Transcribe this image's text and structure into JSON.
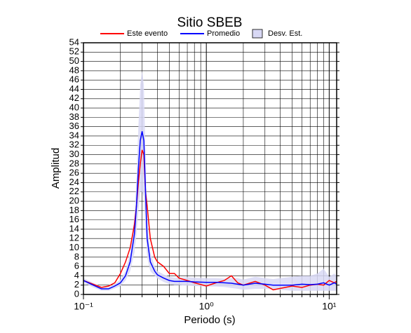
{
  "chart_data": {
    "type": "line",
    "title": "Sitio SBEB",
    "x_label": "Periodo (s)",
    "y_label": "Amplitud",
    "xscale": "log",
    "xlim": [
      0.1,
      11.5
    ],
    "ylim": [
      0,
      54
    ],
    "xticks": [
      {
        "value": 0.1,
        "label": "10⁻¹"
      },
      {
        "value": 1,
        "label": "10⁰"
      },
      {
        "value": 10,
        "label": "10¹"
      }
    ],
    "xminorticks": [
      0.2,
      0.3,
      0.4,
      0.5,
      0.6,
      0.7,
      0.8,
      0.9,
      2,
      3,
      4,
      5,
      6,
      7,
      8,
      9
    ],
    "yticks": [
      0,
      2,
      4,
      6,
      8,
      10,
      12,
      14,
      16,
      18,
      20,
      22,
      24,
      26,
      28,
      30,
      32,
      34,
      36,
      38,
      40,
      42,
      44,
      46,
      48,
      50,
      52,
      54
    ],
    "grid": true,
    "legend": "top",
    "x": [
      0.1,
      0.12,
      0.14,
      0.16,
      0.18,
      0.2,
      0.22,
      0.24,
      0.26,
      0.27,
      0.28,
      0.29,
      0.3,
      0.31,
      0.32,
      0.33,
      0.35,
      0.38,
      0.4,
      0.45,
      0.5,
      0.55,
      0.6,
      0.7,
      0.8,
      1.0,
      1.2,
      1.4,
      1.6,
      1.8,
      2.0,
      2.5,
      3,
      3.5,
      4,
      5,
      6,
      7,
      8,
      9,
      10,
      11,
      11.5
    ],
    "series": [
      {
        "name": "Este evento",
        "color": "#ff0000",
        "values": [
          3,
          2.2,
          1.5,
          1.8,
          2.5,
          4.5,
          7,
          10,
          15,
          19,
          24,
          28,
          31,
          30,
          22,
          19,
          12,
          8,
          7,
          6,
          4.5,
          4.5,
          3.5,
          3,
          2.5,
          1.8,
          2.5,
          3,
          4,
          2.5,
          2,
          2.8,
          2,
          1,
          1.3,
          1.8,
          1.5,
          2,
          2.2,
          2,
          3,
          2.5,
          2.8
        ]
      },
      {
        "name": "Promedio",
        "color": "#0000ff",
        "values": [
          3,
          2,
          1.2,
          1.2,
          1.8,
          2.5,
          4,
          7,
          13,
          19,
          27,
          33,
          35,
          33,
          22,
          12,
          7,
          5,
          4.2,
          3.5,
          3,
          2.8,
          2.8,
          2.8,
          2.7,
          2.6,
          2.6,
          2.5,
          2.4,
          2.2,
          2,
          2.4,
          2.2,
          2,
          2,
          2,
          2.2,
          2.1,
          2.2,
          2.5,
          2,
          2.5,
          2.2
        ]
      },
      {
        "name": "Desv. Est.",
        "color": "#d8d8f4",
        "type": "band",
        "upper": [
          3.5,
          2.5,
          1.6,
          1.6,
          2.3,
          3.2,
          5,
          9,
          17,
          25,
          36,
          45,
          48,
          45,
          30,
          16,
          9,
          6,
          5,
          4.3,
          3.8,
          3.6,
          3.6,
          3.7,
          3.6,
          3.5,
          3.5,
          3.4,
          3.5,
          3.5,
          3.2,
          3.8,
          3.5,
          3.3,
          3.5,
          3.8,
          4,
          4,
          4.5,
          5.5,
          3.8,
          4.5,
          4
        ],
        "lower": [
          2.5,
          1.5,
          0.8,
          0.8,
          1.3,
          1.8,
          3,
          5,
          9,
          13,
          18,
          22,
          22,
          21,
          14,
          8,
          5,
          4,
          3.4,
          2.7,
          2.2,
          2,
          2,
          1.9,
          1.8,
          1.7,
          1.7,
          1.6,
          1.4,
          1.2,
          1,
          1.2,
          1.2,
          1.1,
          1,
          0.8,
          0.8,
          0.8,
          0.8,
          0.8,
          0.8,
          0.8,
          0.8
        ]
      }
    ]
  }
}
